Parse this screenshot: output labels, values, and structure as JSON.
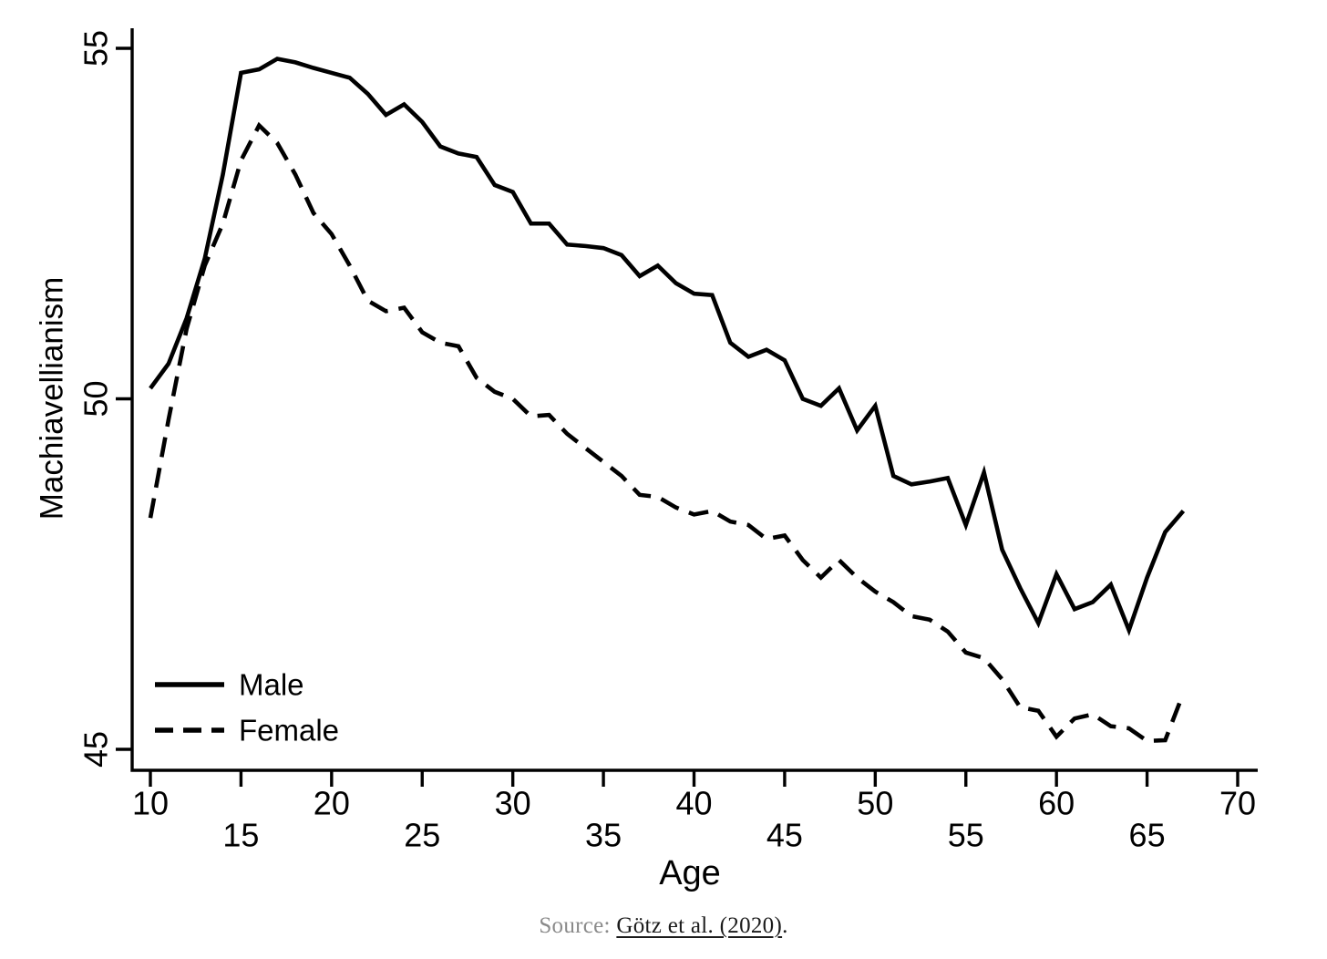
{
  "source": {
    "prefix": "Source: ",
    "link_text": "Götz et al. (2020)",
    "suffix": "."
  },
  "chart_data": {
    "type": "line",
    "title": "",
    "xlabel": "Age",
    "ylabel": "Machiavellianism",
    "xlim": [
      10,
      70
    ],
    "ylim": [
      44.7,
      55.3
    ],
    "grid": false,
    "legend_position": "inside-bottom-left",
    "line_color": "#000000",
    "xticks": [
      10,
      15,
      20,
      25,
      30,
      35,
      40,
      45,
      50,
      55,
      60,
      65,
      70
    ],
    "yticks": [
      45,
      50,
      55
    ],
    "x": [
      10,
      11,
      12,
      13,
      14,
      15,
      16,
      17,
      18,
      19,
      20,
      21,
      22,
      23,
      24,
      25,
      26,
      27,
      28,
      29,
      30,
      31,
      32,
      33,
      34,
      35,
      36,
      37,
      38,
      39,
      40,
      41,
      42,
      43,
      44,
      45,
      46,
      47,
      48,
      49,
      50,
      51,
      52,
      53,
      54,
      55,
      56,
      57,
      58,
      59,
      60,
      61,
      62,
      63,
      64,
      65,
      66,
      67
    ],
    "series": [
      {
        "name": "Male",
        "style": "solid",
        "values": [
          50.15,
          50.5,
          51.15,
          52.0,
          53.2,
          54.65,
          54.7,
          54.85,
          54.8,
          54.72,
          54.65,
          54.58,
          54.35,
          54.05,
          54.2,
          53.95,
          53.6,
          53.5,
          53.45,
          53.05,
          52.95,
          52.5,
          52.5,
          52.2,
          52.18,
          52.15,
          52.05,
          51.75,
          51.9,
          51.65,
          51.5,
          51.48,
          50.8,
          50.6,
          50.7,
          50.55,
          50.0,
          49.9,
          50.15,
          49.55,
          49.9,
          48.9,
          48.78,
          48.82,
          48.87,
          48.2,
          48.95,
          47.85,
          47.3,
          46.8,
          47.5,
          47.0,
          47.1,
          47.35,
          46.7,
          47.45,
          48.1,
          48.4
        ]
      },
      {
        "name": "Female",
        "style": "dashed",
        "values": [
          48.3,
          49.7,
          51.0,
          51.9,
          52.5,
          53.4,
          53.9,
          53.65,
          53.2,
          52.65,
          52.35,
          51.9,
          51.4,
          51.25,
          51.3,
          50.95,
          50.8,
          50.75,
          50.3,
          50.1,
          50.0,
          49.75,
          49.77,
          49.5,
          49.3,
          49.1,
          48.9,
          48.63,
          48.6,
          48.45,
          48.35,
          48.4,
          48.25,
          48.2,
          48.0,
          48.05,
          47.7,
          47.45,
          47.7,
          47.45,
          47.25,
          47.1,
          46.9,
          46.85,
          46.68,
          46.38,
          46.3,
          46.0,
          45.6,
          45.55,
          45.18,
          45.44,
          45.5,
          45.33,
          45.3,
          45.12,
          45.13,
          45.8
        ]
      }
    ]
  }
}
